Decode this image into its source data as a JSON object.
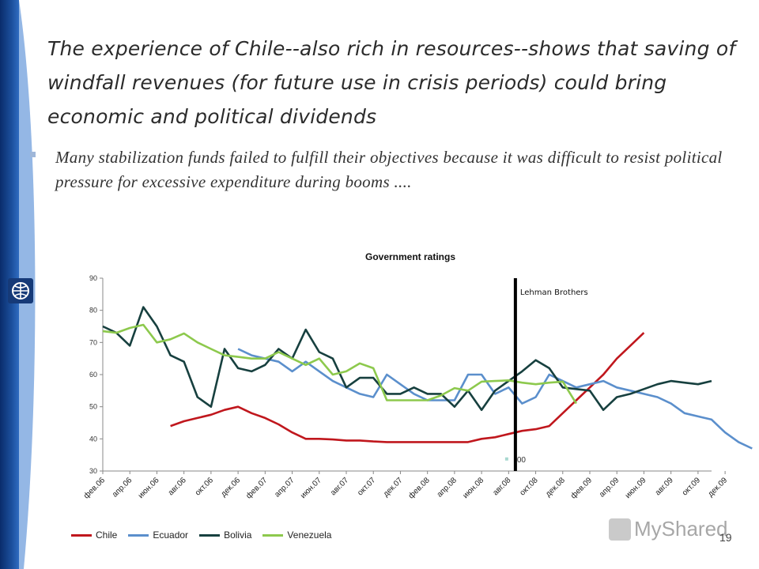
{
  "slide": {
    "title": "The experience of Chile--also rich in resources--shows that saving of windfall revenues (for future use in crisis periods) could bring economic and political dividends",
    "subtitle": "Many stabilization funds failed to fulfill their objectives because it was difficult to resist political pressure for excessive expenditure during booms ....",
    "page_number": "19",
    "watermark": "MyShared",
    "colors": {
      "accent": "#1b4f9c"
    }
  },
  "chart_data": {
    "type": "line",
    "title": "Government ratings",
    "xlabel": "",
    "ylabel": "",
    "ylim": [
      30,
      90
    ],
    "yticks": [
      "30",
      "40",
      "50",
      "60",
      "70",
      "80",
      "90"
    ],
    "xtick_labels": [
      "фев.06",
      "апр.06",
      "июн.06",
      "авг.06",
      "окт.06",
      "дек.06",
      "фев.07",
      "апр.07",
      "июн.07",
      "авг.07",
      "окт.07",
      "дек.07",
      "фев.08",
      "апр.08",
      "июн.08",
      "авг.08",
      "окт.08",
      "дек.08",
      "фев.09",
      "апр.09",
      "июн.09",
      "авг.09",
      "окт.09",
      "дек.09"
    ],
    "annotation": {
      "label": "Lehman Brothers",
      "x_index": 30.5
    },
    "stray_label": "00",
    "legend_position": "bottom",
    "grid": false,
    "series": [
      {
        "name": "Chile",
        "color": "#c0171d",
        "start_index": 5,
        "values": [
          44,
          45.5,
          46.5,
          47.5,
          49,
          50,
          48,
          46.5,
          44.5,
          42,
          40,
          40,
          39.8,
          39.5,
          39.5,
          39.2,
          39,
          39,
          39,
          39,
          39,
          39,
          39,
          40,
          40.5,
          41.5,
          42.5,
          43,
          44,
          48,
          52,
          56,
          60,
          65,
          69,
          73
        ]
      },
      {
        "name": "Ecuador",
        "color": "#5b8fcc",
        "start_index": 10,
        "values": [
          68,
          66,
          65,
          64,
          61,
          64,
          61,
          58,
          56,
          54,
          53,
          60,
          57,
          54,
          52,
          52,
          52,
          60,
          60,
          54,
          56,
          51,
          53,
          60,
          58,
          56,
          57,
          58,
          56,
          55,
          54,
          53,
          51,
          48,
          47,
          46,
          42,
          39,
          37
        ]
      },
      {
        "name": "Bolivia",
        "color": "#17403f",
        "start_index": 0,
        "values": [
          75,
          73,
          69,
          81,
          75,
          66,
          64,
          53,
          50,
          68,
          62,
          61,
          63,
          68,
          65,
          74,
          67,
          65,
          56,
          59,
          59,
          54,
          54,
          56,
          54,
          54,
          50,
          55,
          49,
          55,
          58,
          61,
          64.5,
          62,
          56,
          55.5,
          55,
          49,
          53,
          54,
          55.5,
          57,
          58,
          57.5,
          57,
          58
        ]
      },
      {
        "name": "Venezuela",
        "color": "#8dc94d",
        "start_index": 0,
        "values": [
          73.5,
          73,
          74.5,
          75.5,
          70,
          71,
          72.8,
          70,
          68,
          66,
          65.5,
          65,
          65,
          67,
          65,
          63,
          65,
          60,
          61,
          63.5,
          62,
          52,
          52,
          52,
          52,
          53.5,
          55.8,
          55,
          57.8,
          58,
          58.2,
          57.5,
          57,
          57.5,
          57.8,
          51
        ]
      }
    ]
  }
}
